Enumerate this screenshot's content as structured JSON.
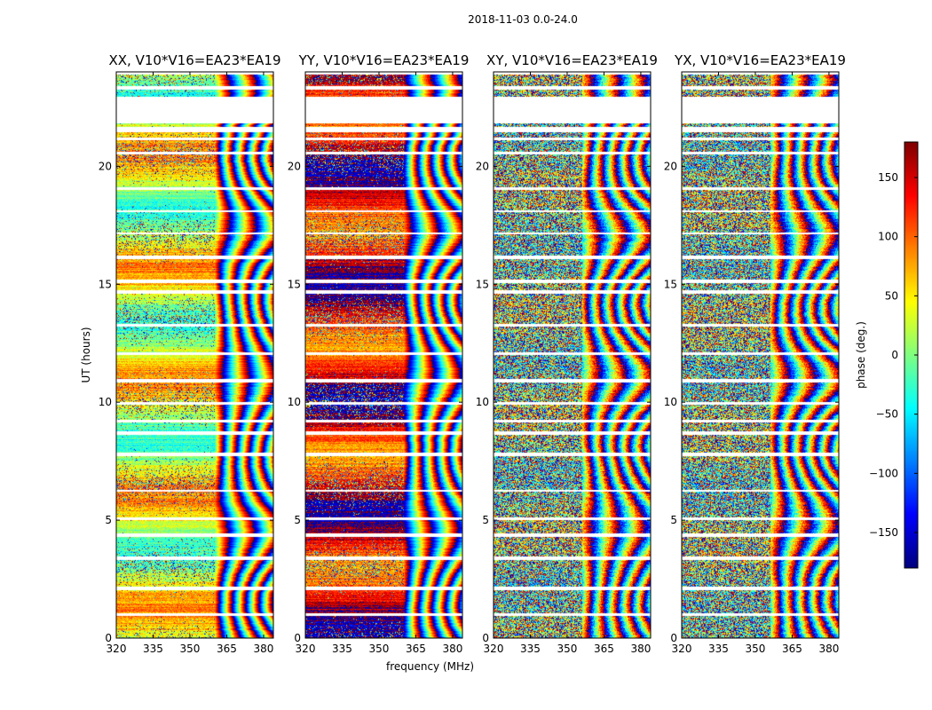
{
  "figure": {
    "suptitle": "2018-11-03 0.0-24.0"
  },
  "chart_data": [
    {
      "type": "heatmap",
      "title": "XX, V10*V16=EA23*EA19",
      "xlabel": "",
      "ylabel": "UT (hours)",
      "xlim": [
        320,
        384
      ],
      "ylim": [
        0,
        24
      ],
      "xticks": [
        "320",
        "335",
        "350",
        "365",
        "380"
      ],
      "yticks": [
        "0",
        "5",
        "10",
        "15",
        "20"
      ],
      "mode": "coherent",
      "base_phase": 30,
      "fringe_start_mhz": 360
    },
    {
      "type": "heatmap",
      "title": "YY, V10*V16=EA23*EA19",
      "xlabel": "frequency (MHz)",
      "ylabel": "",
      "xlim": [
        320,
        384
      ],
      "ylim": [
        0,
        24
      ],
      "xticks": [
        "320",
        "335",
        "350",
        "365",
        "380"
      ],
      "yticks": [
        "0",
        "5",
        "10",
        "15",
        "20"
      ],
      "mode": "coherent",
      "base_phase": 140,
      "fringe_start_mhz": 360
    },
    {
      "type": "heatmap",
      "title": "XY, V10*V16=EA23*EA19",
      "xlabel": "",
      "ylabel": "",
      "xlim": [
        320,
        384
      ],
      "ylim": [
        0,
        24
      ],
      "xticks": [
        "320",
        "335",
        "350",
        "365",
        "380"
      ],
      "yticks": [
        "0",
        "5",
        "10",
        "15",
        "20"
      ],
      "mode": "noise",
      "base_phase": 0,
      "fringe_start_mhz": 356
    },
    {
      "type": "heatmap",
      "title": "YX, V10*V16=EA23*EA19",
      "xlabel": "",
      "ylabel": "",
      "xlim": [
        320,
        384
      ],
      "ylim": [
        0,
        24
      ],
      "xticks": [
        "320",
        "335",
        "350",
        "365",
        "380"
      ],
      "yticks": [
        "0",
        "5",
        "10",
        "15",
        "20"
      ],
      "mode": "noise",
      "base_phase": 0,
      "fringe_start_mhz": 356
    }
  ],
  "colorbar": {
    "label": "phase (deg.)",
    "range": [
      -180,
      180
    ],
    "ticks": [
      "150",
      "100",
      "50",
      "0",
      "−50",
      "−100",
      "−150"
    ],
    "tick_values": [
      150,
      100,
      50,
      0,
      -50,
      -100,
      -150
    ],
    "colormap": "jet"
  },
  "flagged_ut_ranges_hours": [
    [
      0.95,
      1.05
    ],
    [
      2.05,
      2.2
    ],
    [
      3.3,
      3.45
    ],
    [
      4.3,
      4.45
    ],
    [
      5.0,
      5.1
    ],
    [
      6.2,
      6.3
    ],
    [
      7.7,
      7.85
    ],
    [
      8.6,
      8.75
    ],
    [
      9.15,
      9.25
    ],
    [
      9.9,
      10.0
    ],
    [
      10.85,
      11.0
    ],
    [
      12.0,
      12.1
    ],
    [
      13.2,
      13.3
    ],
    [
      14.6,
      14.75
    ],
    [
      15.05,
      15.2
    ],
    [
      16.05,
      16.2
    ],
    [
      17.1,
      17.2
    ],
    [
      18.05,
      18.15
    ],
    [
      19.0,
      19.1
    ],
    [
      20.5,
      20.6
    ],
    [
      21.1,
      21.2
    ],
    [
      21.45,
      21.65
    ],
    [
      21.8,
      22.95
    ],
    [
      23.25,
      23.4
    ],
    [
      23.9,
      24.0
    ]
  ]
}
